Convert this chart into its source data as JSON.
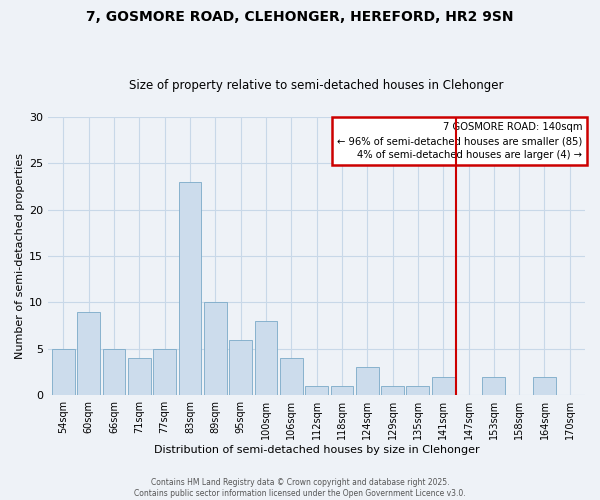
{
  "title": "7, GOSMORE ROAD, CLEHONGER, HEREFORD, HR2 9SN",
  "subtitle": "Size of property relative to semi-detached houses in Clehonger",
  "xlabel": "Distribution of semi-detached houses by size in Clehonger",
  "ylabel": "Number of semi-detached properties",
  "categories": [
    "54sqm",
    "60sqm",
    "66sqm",
    "71sqm",
    "77sqm",
    "83sqm",
    "89sqm",
    "95sqm",
    "100sqm",
    "106sqm",
    "112sqm",
    "118sqm",
    "124sqm",
    "129sqm",
    "135sqm",
    "141sqm",
    "147sqm",
    "153sqm",
    "158sqm",
    "164sqm",
    "170sqm"
  ],
  "values": [
    5,
    9,
    5,
    4,
    5,
    23,
    10,
    6,
    8,
    4,
    1,
    1,
    3,
    1,
    1,
    2,
    0,
    2,
    0,
    2,
    0
  ],
  "bar_color": "#ccdcec",
  "bar_edgecolor": "#7aaac8",
  "vline_color": "#cc0000",
  "annotation_title": "7 GOSMORE ROAD: 140sqm",
  "annotation_line1": "← 96% of semi-detached houses are smaller (85)",
  "annotation_line2": "4% of semi-detached houses are larger (4) →",
  "annotation_box_color": "white",
  "annotation_box_edgecolor": "#cc0000",
  "ylim": [
    0,
    30
  ],
  "yticks": [
    0,
    5,
    10,
    15,
    20,
    25,
    30
  ],
  "grid_color": "#c8d8e8",
  "background_color": "#eef2f7",
  "footer_line1": "Contains HM Land Registry data © Crown copyright and database right 2025.",
  "footer_line2": "Contains public sector information licensed under the Open Government Licence v3.0."
}
